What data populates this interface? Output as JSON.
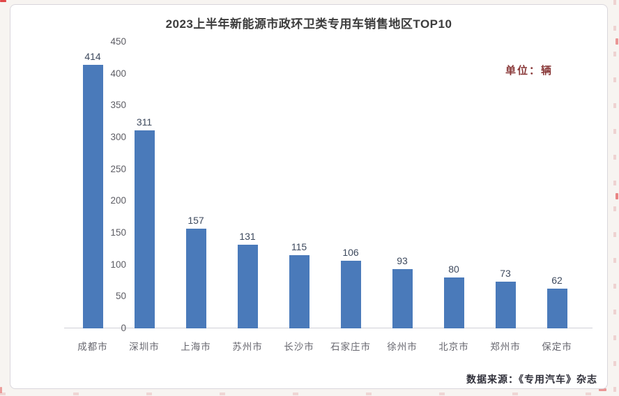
{
  "chart_data": {
    "type": "bar",
    "title": "2023上半年新能源市政环卫类专用车销售地区TOP10",
    "unit_label": "单位：辆",
    "categories": [
      "成都市",
      "深圳市",
      "上海市",
      "苏州市",
      "长沙市",
      "石家庄市",
      "徐州市",
      "北京市",
      "郑州市",
      "保定市"
    ],
    "values": [
      414,
      311,
      157,
      131,
      115,
      106,
      93,
      80,
      73,
      62
    ],
    "y_ticks": [
      450,
      400,
      350,
      300,
      250,
      200,
      150,
      100,
      50,
      0
    ],
    "ylim": [
      0,
      450
    ],
    "grid": false,
    "legend": "none",
    "bar_color": "#4a7aba",
    "source": "数据来源：《专用汽车》杂志"
  }
}
